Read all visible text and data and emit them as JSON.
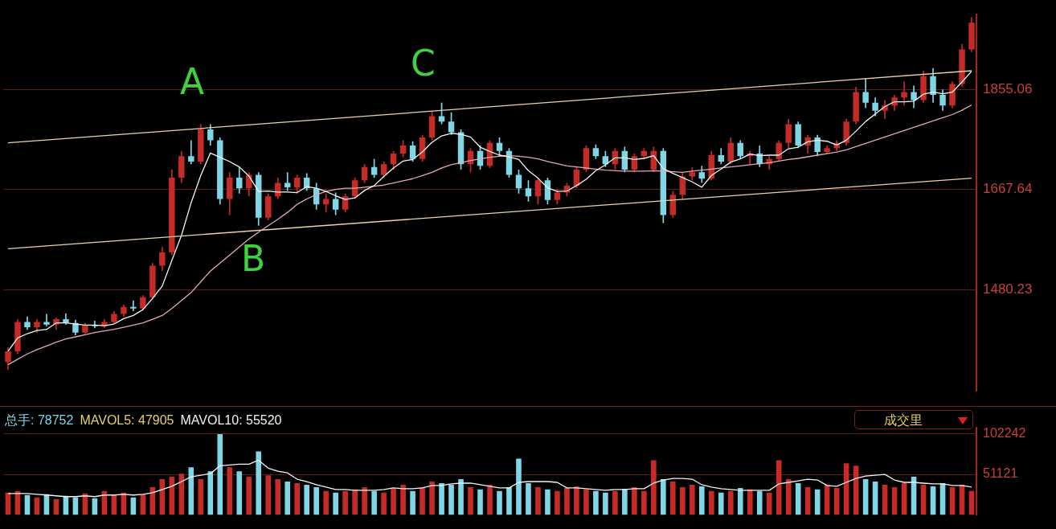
{
  "chart_data": [
    {
      "type": "candlestick",
      "categories": [
        null,
        null,
        null,
        null,
        null,
        null,
        null,
        null,
        null,
        null,
        null,
        null,
        null,
        null,
        null,
        null,
        null,
        null,
        null,
        null,
        null,
        null,
        null,
        null,
        null,
        null,
        null,
        null,
        null,
        null,
        null,
        null,
        null,
        null,
        null,
        null,
        null,
        null,
        null,
        null,
        null,
        null,
        null,
        null,
        null,
        null,
        null,
        null,
        null,
        null,
        null,
        null,
        null,
        null,
        null,
        null,
        null,
        null,
        null,
        null,
        null,
        null,
        null,
        null,
        null,
        null,
        null,
        null,
        null,
        null,
        null,
        null,
        null,
        null,
        null,
        null,
        null,
        null,
        null,
        null,
        null,
        null,
        null,
        null,
        null,
        null,
        null,
        null,
        null,
        null,
        null,
        null,
        null,
        null,
        null,
        null,
        null,
        null,
        null,
        null,
        null
      ],
      "ohlc": [
        [
          1345,
          1372,
          1330,
          1365
        ],
        [
          1365,
          1425,
          1360,
          1420
        ],
        [
          1420,
          1430,
          1405,
          1410
        ],
        [
          1410,
          1425,
          1400,
          1420
        ],
        [
          1420,
          1435,
          1412,
          1415
        ],
        [
          1415,
          1428,
          1405,
          1425
        ],
        [
          1425,
          1436,
          1415,
          1418
        ],
        [
          1418,
          1424,
          1395,
          1400
        ],
        [
          1400,
          1418,
          1398,
          1414
        ],
        [
          1414,
          1422,
          1408,
          1412
        ],
        [
          1412,
          1425,
          1408,
          1420
        ],
        [
          1420,
          1440,
          1416,
          1435
        ],
        [
          1435,
          1452,
          1430,
          1448
        ],
        [
          1448,
          1460,
          1440,
          1445
        ],
        [
          1445,
          1470,
          1442,
          1466
        ],
        [
          1466,
          1530,
          1462,
          1525
        ],
        [
          1525,
          1560,
          1515,
          1550
        ],
        [
          1550,
          1705,
          1545,
          1690
        ],
        [
          1690,
          1740,
          1680,
          1730
        ],
        [
          1730,
          1760,
          1715,
          1720
        ],
        [
          1720,
          1790,
          1715,
          1780
        ],
        [
          1780,
          1790,
          1750,
          1760
        ],
        [
          1760,
          1765,
          1640,
          1650
        ],
        [
          1650,
          1700,
          1620,
          1690
        ],
        [
          1690,
          1710,
          1660,
          1670
        ],
        [
          1670,
          1700,
          1655,
          1695
        ],
        [
          1695,
          1700,
          1600,
          1615
        ],
        [
          1615,
          1660,
          1610,
          1655
        ],
        [
          1655,
          1690,
          1650,
          1680
        ],
        [
          1680,
          1700,
          1665,
          1672
        ],
        [
          1672,
          1695,
          1660,
          1690
        ],
        [
          1690,
          1698,
          1665,
          1670
        ],
        [
          1670,
          1680,
          1630,
          1640
        ],
        [
          1640,
          1660,
          1625,
          1650
        ],
        [
          1650,
          1662,
          1620,
          1630
        ],
        [
          1630,
          1660,
          1625,
          1655
        ],
        [
          1655,
          1690,
          1650,
          1685
        ],
        [
          1685,
          1715,
          1680,
          1710
        ],
        [
          1710,
          1725,
          1690,
          1695
        ],
        [
          1695,
          1720,
          1690,
          1715
        ],
        [
          1715,
          1740,
          1705,
          1735
        ],
        [
          1735,
          1760,
          1728,
          1750
        ],
        [
          1750,
          1758,
          1720,
          1725
        ],
        [
          1725,
          1770,
          1720,
          1765
        ],
        [
          1765,
          1815,
          1760,
          1805
        ],
        [
          1805,
          1830,
          1790,
          1795
        ],
        [
          1795,
          1812,
          1770,
          1775
        ],
        [
          1775,
          1780,
          1705,
          1715
        ],
        [
          1715,
          1745,
          1700,
          1740
        ],
        [
          1740,
          1750,
          1705,
          1712
        ],
        [
          1712,
          1760,
          1708,
          1755
        ],
        [
          1755,
          1765,
          1730,
          1740
        ],
        [
          1740,
          1745,
          1690,
          1695
        ],
        [
          1695,
          1705,
          1660,
          1670
        ],
        [
          1670,
          1685,
          1645,
          1655
        ],
        [
          1655,
          1690,
          1640,
          1685
        ],
        [
          1685,
          1690,
          1640,
          1648
        ],
        [
          1648,
          1668,
          1640,
          1662
        ],
        [
          1662,
          1680,
          1655,
          1675
        ],
        [
          1675,
          1710,
          1670,
          1705
        ],
        [
          1705,
          1750,
          1700,
          1745
        ],
        [
          1745,
          1752,
          1725,
          1730
        ],
        [
          1730,
          1740,
          1710,
          1715
        ],
        [
          1715,
          1745,
          1705,
          1740
        ],
        [
          1740,
          1748,
          1700,
          1705
        ],
        [
          1705,
          1735,
          1700,
          1730
        ],
        [
          1730,
          1745,
          1725,
          1740
        ],
        [
          1705,
          1748,
          1700,
          1740
        ],
        [
          1740,
          1745,
          1605,
          1620
        ],
        [
          1620,
          1665,
          1615,
          1658
        ],
        [
          1658,
          1700,
          1650,
          1692
        ],
        [
          1692,
          1710,
          1685,
          1700
        ],
        [
          1700,
          1712,
          1680,
          1688
        ],
        [
          1688,
          1740,
          1685,
          1732
        ],
        [
          1732,
          1745,
          1715,
          1720
        ],
        [
          1720,
          1765,
          1715,
          1755
        ],
        [
          1755,
          1760,
          1725,
          1730
        ],
        [
          1730,
          1740,
          1715,
          1735
        ],
        [
          1735,
          1750,
          1710,
          1715
        ],
        [
          1715,
          1730,
          1705,
          1725
        ],
        [
          1725,
          1760,
          1720,
          1755
        ],
        [
          1755,
          1800,
          1745,
          1790
        ],
        [
          1790,
          1795,
          1745,
          1750
        ],
        [
          1750,
          1770,
          1735,
          1765
        ],
        [
          1765,
          1770,
          1730,
          1738
        ],
        [
          1738,
          1750,
          1735,
          1745
        ],
        [
          1745,
          1760,
          1740,
          1755
        ],
        [
          1755,
          1800,
          1750,
          1795
        ],
        [
          1795,
          1860,
          1790,
          1850
        ],
        [
          1850,
          1875,
          1820,
          1830
        ],
        [
          1830,
          1840,
          1805,
          1815
        ],
        [
          1815,
          1835,
          1800,
          1825
        ],
        [
          1825,
          1845,
          1815,
          1840
        ],
        [
          1840,
          1870,
          1825,
          1850
        ],
        [
          1850,
          1862,
          1820,
          1835
        ],
        [
          1835,
          1890,
          1830,
          1880
        ],
        [
          1880,
          1895,
          1830,
          1845
        ],
        [
          1845,
          1855,
          1815,
          1825
        ],
        [
          1825,
          1870,
          1820,
          1865
        ],
        [
          1865,
          1940,
          1860,
          1930
        ],
        [
          1930,
          1990,
          1925,
          1980
        ]
      ],
      "colors": [
        "#c62b28",
        "#c62b28",
        "#7fd6e6",
        "#c62b28",
        "#7fd6e6",
        "#c62b28",
        "#7fd6e6",
        "#7fd6e6",
        "#c62b28",
        "#7fd6e6",
        "#c62b28",
        "#c62b28",
        "#c62b28",
        "#7fd6e6",
        "#c62b28",
        "#c62b28",
        "#c62b28",
        "#c62b28",
        "#c62b28",
        "#7fd6e6",
        "#c62b28",
        "#7fd6e6",
        "#7fd6e6",
        "#c62b28",
        "#7fd6e6",
        "#c62b28",
        "#7fd6e6",
        "#c62b28",
        "#c62b28",
        "#7fd6e6",
        "#c62b28",
        "#7fd6e6",
        "#7fd6e6",
        "#c62b28",
        "#7fd6e6",
        "#c62b28",
        "#c62b28",
        "#c62b28",
        "#7fd6e6",
        "#c62b28",
        "#c62b28",
        "#c62b28",
        "#7fd6e6",
        "#c62b28",
        "#c62b28",
        "#7fd6e6",
        "#7fd6e6",
        "#7fd6e6",
        "#c62b28",
        "#7fd6e6",
        "#c62b28",
        "#7fd6e6",
        "#7fd6e6",
        "#7fd6e6",
        "#7fd6e6",
        "#c62b28",
        "#7fd6e6",
        "#c62b28",
        "#c62b28",
        "#c62b28",
        "#c62b28",
        "#7fd6e6",
        "#7fd6e6",
        "#c62b28",
        "#7fd6e6",
        "#c62b28",
        "#c62b28",
        "#c62b28",
        "#7fd6e6",
        "#c62b28",
        "#c62b28",
        "#c62b28",
        "#7fd6e6",
        "#c62b28",
        "#7fd6e6",
        "#c62b28",
        "#7fd6e6",
        "#c62b28",
        "#7fd6e6",
        "#c62b28",
        "#c62b28",
        "#c62b28",
        "#7fd6e6",
        "#c62b28",
        "#7fd6e6",
        "#c62b28",
        "#c62b28",
        "#c62b28",
        "#c62b28",
        "#7fd6e6",
        "#7fd6e6",
        "#c62b28",
        "#c62b28",
        "#c62b28",
        "#7fd6e6",
        "#c62b28",
        "#7fd6e6",
        "#7fd6e6",
        "#c62b28",
        "#c62b28",
        "#c62b28"
      ],
      "series": [
        {
          "type": "line",
          "color": "#f4f4f4",
          "values": [
            1365,
            1390,
            1398,
            1404,
            1406,
            1418,
            1418,
            1416,
            1414,
            1414,
            1413,
            1416,
            1426,
            1432,
            1443,
            1464,
            1487,
            1535,
            1582,
            1643,
            1694,
            1736,
            1728,
            1720,
            1710,
            1693,
            1664,
            1665,
            1663,
            1663,
            1662,
            1673,
            1670,
            1664,
            1656,
            1649,
            1652,
            1666,
            1675,
            1692,
            1708,
            1721,
            1724,
            1738,
            1756,
            1768,
            1773,
            1771,
            1766,
            1747,
            1739,
            1732,
            1729,
            1724,
            1703,
            1689,
            1671,
            1664,
            1665,
            1675,
            1687,
            1703,
            1714,
            1727,
            1727,
            1724,
            1726,
            1731,
            1707,
            1698,
            1690,
            1682,
            1672,
            1694,
            1706,
            1719,
            1725,
            1734,
            1731,
            1732,
            1732,
            1744,
            1747,
            1757,
            1760,
            1758,
            1751,
            1760,
            1777,
            1795,
            1809,
            1823,
            1832,
            1832,
            1833,
            1846,
            1850,
            1847,
            1850,
            1869,
            1889
          ]
        },
        {
          "type": "line",
          "color": "#e0a8bc",
          "values": [
            1340,
            1350,
            1360,
            1368,
            1375,
            1382,
            1388,
            1392,
            1396,
            1400,
            1403,
            1406,
            1410,
            1414,
            1418,
            1425,
            1432,
            1445,
            1460,
            1475,
            1495,
            1515,
            1530,
            1545,
            1560,
            1575,
            1588,
            1600,
            1612,
            1625,
            1640,
            1650,
            1658,
            1664,
            1668,
            1670,
            1670,
            1672,
            1674,
            1676,
            1680,
            1684,
            1688,
            1694,
            1700,
            1708,
            1714,
            1718,
            1722,
            1725,
            1728,
            1730,
            1731,
            1730,
            1728,
            1725,
            1720,
            1716,
            1712,
            1710,
            1708,
            1706,
            1704,
            1703,
            1702,
            1702,
            1702,
            1703,
            1702,
            1701,
            1700,
            1702,
            1704,
            1706,
            1708,
            1710,
            1712,
            1714,
            1716,
            1718,
            1721,
            1724,
            1726,
            1729,
            1732,
            1735,
            1738,
            1742,
            1748,
            1754,
            1760,
            1766,
            1772,
            1778,
            1784,
            1790,
            1796,
            1802,
            1808,
            1816,
            1826
          ]
        },
        {
          "type": "line",
          "color": "#e8d4a8",
          "values": [
            1755,
            null,
            null,
            null,
            null,
            null,
            null,
            null,
            null,
            null,
            null,
            null,
            null,
            null,
            null,
            null,
            null,
            null,
            null,
            null,
            null,
            null,
            null,
            null,
            null,
            null,
            null,
            null,
            null,
            null,
            null,
            null,
            null,
            null,
            null,
            null,
            null,
            null,
            null,
            null,
            null,
            null,
            null,
            null,
            null,
            null,
            null,
            null,
            null,
            null,
            null,
            null,
            null,
            null,
            null,
            null,
            null,
            null,
            null,
            null,
            null,
            null,
            null,
            null,
            null,
            null,
            null,
            null,
            null,
            null,
            null,
            null,
            null,
            null,
            null,
            null,
            null,
            null,
            null,
            null,
            null,
            null,
            null,
            null,
            null,
            null,
            null,
            null,
            null,
            null,
            null,
            null,
            null,
            null,
            null,
            null,
            null,
            null,
            null,
            null,
            1890
          ]
        },
        {
          "type": "line",
          "color": "#e8d4a8",
          "values": [
            1557,
            null,
            null,
            null,
            null,
            null,
            null,
            null,
            null,
            null,
            null,
            null,
            null,
            null,
            null,
            null,
            null,
            null,
            null,
            null,
            null,
            null,
            null,
            null,
            null,
            null,
            null,
            null,
            null,
            null,
            null,
            null,
            null,
            null,
            null,
            null,
            null,
            null,
            null,
            null,
            null,
            null,
            null,
            null,
            null,
            null,
            null,
            null,
            null,
            null,
            null,
            null,
            null,
            null,
            null,
            null,
            null,
            null,
            null,
            null,
            null,
            null,
            null,
            null,
            null,
            null,
            null,
            null,
            null,
            null,
            null,
            null,
            null,
            null,
            null,
            null,
            null,
            null,
            null,
            null,
            null,
            null,
            null,
            null,
            null,
            null,
            null,
            null,
            null,
            null,
            null,
            null,
            null,
            null,
            null,
            null,
            null,
            null,
            null,
            null,
            1689
          ]
        }
      ],
      "ylim": [
        1290,
        1995
      ],
      "yticks": [
        1480.23,
        1667.64,
        1855.06
      ],
      "grid": "y",
      "tick_labels": "y",
      "annotations": [
        "A",
        "B",
        "C"
      ]
    },
    {
      "type": "bar",
      "categories": [
        null,
        null,
        null,
        null,
        null,
        null,
        null,
        null,
        null,
        null,
        null,
        null,
        null,
        null,
        null,
        null,
        null,
        null,
        null,
        null,
        null,
        null,
        null,
        null,
        null,
        null,
        null,
        null,
        null,
        null,
        null,
        null,
        null,
        null,
        null,
        null,
        null,
        null,
        null,
        null,
        null,
        null,
        null,
        null,
        null,
        null,
        null,
        null,
        null,
        null,
        null,
        null,
        null,
        null,
        null,
        null,
        null,
        null,
        null,
        null,
        null,
        null,
        null,
        null,
        null,
        null,
        null,
        null,
        null,
        null,
        null,
        null,
        null,
        null,
        null,
        null,
        null,
        null,
        null,
        null,
        null,
        null,
        null,
        null,
        null,
        null,
        null,
        null,
        null,
        null,
        null,
        null,
        null,
        null,
        null,
        null,
        null,
        null,
        null,
        null,
        null
      ],
      "series": [
        {
          "values": [
            28000,
            30000,
            25000,
            22000,
            26000,
            20000,
            24000,
            22000,
            27000,
            21000,
            30000,
            25000,
            28000,
            22000,
            26000,
            35000,
            45000,
            48000,
            52000,
            60000,
            45000,
            55000,
            102000,
            60000,
            55000,
            48000,
            80000,
            50000,
            45000,
            42000,
            40000,
            38000,
            35000,
            30000,
            28000,
            30000,
            32000,
            35000,
            30000,
            28000,
            33000,
            38000,
            30000,
            35000,
            42000,
            40000,
            38000,
            45000,
            35000,
            32000,
            38000,
            30000,
            35000,
            71000,
            40000,
            35000,
            32000,
            30000,
            34000,
            36000,
            32000,
            30000,
            28000,
            30000,
            33000,
            35000,
            30000,
            69000,
            45000,
            42000,
            35000,
            38000,
            36000,
            30000,
            28000,
            30000,
            34000,
            32000,
            30000,
            28000,
            69000,
            45000,
            40000,
            35000,
            32000,
            38000,
            34000,
            65000,
            62000,
            45000,
            42000,
            38000,
            35000,
            40000,
            48000,
            38000,
            36000,
            40000,
            35000,
            38000,
            30000
          ],
          "colors": [
            "#c62b28",
            "#c62b28",
            "#7fd6e6",
            "#c62b28",
            "#7fd6e6",
            "#c62b28",
            "#7fd6e6",
            "#7fd6e6",
            "#c62b28",
            "#7fd6e6",
            "#c62b28",
            "#c62b28",
            "#c62b28",
            "#7fd6e6",
            "#c62b28",
            "#c62b28",
            "#c62b28",
            "#c62b28",
            "#c62b28",
            "#7fd6e6",
            "#c62b28",
            "#7fd6e6",
            "#7fd6e6",
            "#c62b28",
            "#7fd6e6",
            "#c62b28",
            "#7fd6e6",
            "#c62b28",
            "#c62b28",
            "#7fd6e6",
            "#c62b28",
            "#7fd6e6",
            "#7fd6e6",
            "#c62b28",
            "#7fd6e6",
            "#c62b28",
            "#c62b28",
            "#c62b28",
            "#7fd6e6",
            "#c62b28",
            "#c62b28",
            "#c62b28",
            "#7fd6e6",
            "#c62b28",
            "#c62b28",
            "#7fd6e6",
            "#7fd6e6",
            "#7fd6e6",
            "#c62b28",
            "#7fd6e6",
            "#c62b28",
            "#7fd6e6",
            "#7fd6e6",
            "#7fd6e6",
            "#7fd6e6",
            "#c62b28",
            "#7fd6e6",
            "#c62b28",
            "#c62b28",
            "#c62b28",
            "#c62b28",
            "#7fd6e6",
            "#7fd6e6",
            "#c62b28",
            "#7fd6e6",
            "#c62b28",
            "#c62b28",
            "#c62b28",
            "#7fd6e6",
            "#c62b28",
            "#c62b28",
            "#c62b28",
            "#7fd6e6",
            "#c62b28",
            "#7fd6e6",
            "#c62b28",
            "#7fd6e6",
            "#c62b28",
            "#7fd6e6",
            "#c62b28",
            "#c62b28",
            "#c62b28",
            "#7fd6e6",
            "#c62b28",
            "#7fd6e6",
            "#c62b28",
            "#c62b28",
            "#c62b28",
            "#c62b28",
            "#7fd6e6",
            "#7fd6e6",
            "#c62b28",
            "#c62b28",
            "#c62b28",
            "#7fd6e6",
            "#c62b28",
            "#7fd6e6",
            "#7fd6e6",
            "#c62b28",
            "#c62b28",
            "#c62b28"
          ]
        },
        {
          "type": "line",
          "color": "#f4f4f4",
          "values": [
            27000,
            27000,
            27000,
            26000,
            25000,
            24000,
            23000,
            23000,
            24000,
            23000,
            25000,
            25000,
            26000,
            25000,
            26000,
            28000,
            32000,
            36000,
            42000,
            48000,
            50000,
            52000,
            62000,
            63000,
            64000,
            64000,
            69000,
            59000,
            55000,
            53000,
            45000,
            42000,
            38000,
            35000,
            32000,
            32000,
            31000,
            31000,
            31000,
            32000,
            34000,
            33000,
            33000,
            34000,
            37000,
            37000,
            39000,
            40000,
            40000,
            38000,
            36000,
            34000,
            34000,
            41000,
            42000,
            42000,
            42000,
            41000,
            34000,
            34000,
            33000,
            32000,
            31000,
            32000,
            32000,
            33000,
            33000,
            40000,
            44000,
            46000,
            46000,
            45000,
            38000,
            35000,
            33000,
            32000,
            31000,
            31000,
            31000,
            31000,
            39000,
            41000,
            43000,
            45000,
            44000,
            37000,
            36000,
            41000,
            46000,
            49000,
            50000,
            51000,
            44000,
            41000,
            41000,
            40000,
            39000,
            39000,
            37000,
            37000,
            35000
          ]
        }
      ],
      "ylim": [
        0,
        110000
      ],
      "yticks": [
        51121,
        102242
      ],
      "grid": "y",
      "tick_labels": "y",
      "annotations": [
        "总手: 78752",
        "MAVOL5: 47905",
        "MAVOL10: 55520",
        "成交里"
      ]
    }
  ]
}
